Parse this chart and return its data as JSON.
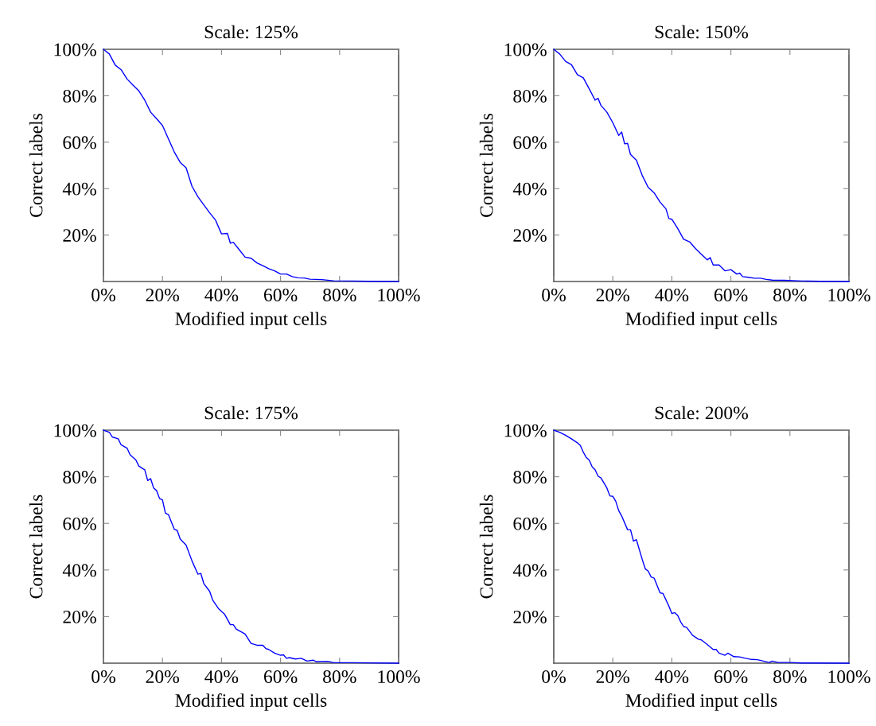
{
  "chart_data": [
    {
      "type": "line",
      "title": "Scale: 125%",
      "xlabel": "Modified input cells",
      "ylabel": "Correct labels",
      "xlim": [
        0,
        100
      ],
      "ylim": [
        0,
        100
      ],
      "xticks": [
        {
          "value": 0,
          "label": "0%"
        },
        {
          "value": 20,
          "label": "20%"
        },
        {
          "value": 40,
          "label": "40%"
        },
        {
          "value": 60,
          "label": "60%"
        },
        {
          "value": 80,
          "label": "80%"
        },
        {
          "value": 100,
          "label": "100%"
        }
      ],
      "yticks": [
        {
          "value": 20,
          "label": "20%"
        },
        {
          "value": 40,
          "label": "40%"
        },
        {
          "value": 60,
          "label": "60%"
        },
        {
          "value": 80,
          "label": "80%"
        },
        {
          "value": 100,
          "label": "100%"
        }
      ],
      "grid": false,
      "marker": "none",
      "line_style": "solid",
      "series": [
        {
          "color": "#0000ff",
          "x": [
            0,
            2,
            4,
            6,
            8,
            10,
            12,
            14,
            16,
            18,
            20,
            22,
            24,
            26,
            28,
            30,
            32,
            34,
            36,
            38,
            40,
            42,
            43,
            44,
            46,
            48,
            50,
            52,
            54,
            56,
            58,
            60,
            62,
            64,
            66,
            68,
            70,
            74,
            78,
            84,
            90,
            100
          ],
          "values": [
            100,
            98,
            93.2,
            91.2,
            87.2,
            84.6,
            82.1,
            78.1,
            72.9,
            70.1,
            67.2,
            61.5,
            55.8,
            51.3,
            49.0,
            41.0,
            36.5,
            33.0,
            29.6,
            26.4,
            20.5,
            20.7,
            16.5,
            16.9,
            13.7,
            10.5,
            10.0,
            8.0,
            6.8,
            5.5,
            4.6,
            3.2,
            3.2,
            2.1,
            1.6,
            1.5,
            1.0,
            0.8,
            0.3,
            0.2,
            0.1,
            0
          ]
        }
      ]
    },
    {
      "type": "line",
      "title": "Scale: 150%",
      "xlabel": "Modified input cells",
      "ylabel": "Correct labels",
      "xlim": [
        0,
        100
      ],
      "ylim": [
        0,
        100
      ],
      "xticks": [
        {
          "value": 0,
          "label": "0%"
        },
        {
          "value": 20,
          "label": "20%"
        },
        {
          "value": 40,
          "label": "40%"
        },
        {
          "value": 60,
          "label": "60%"
        },
        {
          "value": 80,
          "label": "80%"
        },
        {
          "value": 100,
          "label": "100%"
        }
      ],
      "yticks": [
        {
          "value": 20,
          "label": "20%"
        },
        {
          "value": 40,
          "label": "40%"
        },
        {
          "value": 60,
          "label": "60%"
        },
        {
          "value": 80,
          "label": "80%"
        },
        {
          "value": 100,
          "label": "100%"
        }
      ],
      "grid": false,
      "marker": "none",
      "line_style": "solid",
      "series": [
        {
          "color": "#0000ff",
          "x": [
            0,
            2,
            4,
            6,
            8,
            10,
            12,
            14,
            15,
            16,
            18,
            20,
            22,
            23,
            24,
            25,
            26,
            28,
            30,
            32,
            34,
            36,
            38,
            39,
            40,
            42,
            44,
            46,
            48,
            50,
            52,
            53,
            54,
            56,
            58,
            60,
            62,
            63,
            64,
            66,
            68,
            70,
            72,
            74,
            78,
            84,
            90,
            100
          ],
          "values": [
            100,
            98,
            94.8,
            93.4,
            89.1,
            87.7,
            83.0,
            78.1,
            78.9,
            75.8,
            72.9,
            68.4,
            62.9,
            64.4,
            59.3,
            59.5,
            54.7,
            52.2,
            45.6,
            40.5,
            38.2,
            34.2,
            31.3,
            27.1,
            26.8,
            22.8,
            18.2,
            17.1,
            14.2,
            11.7,
            9.3,
            10.3,
            7.1,
            7.1,
            4.6,
            5.1,
            3.2,
            3.6,
            2.1,
            1.8,
            1.4,
            1.4,
            0.9,
            0.6,
            0.5,
            0.2,
            0.1,
            0
          ]
        }
      ]
    },
    {
      "type": "line",
      "title": "Scale: 175%",
      "xlabel": "Modified input cells",
      "ylabel": "Correct labels",
      "xlim": [
        0,
        100
      ],
      "ylim": [
        0,
        100
      ],
      "xticks": [
        {
          "value": 0,
          "label": "0%"
        },
        {
          "value": 20,
          "label": "20%"
        },
        {
          "value": 40,
          "label": "40%"
        },
        {
          "value": 60,
          "label": "60%"
        },
        {
          "value": 80,
          "label": "80%"
        },
        {
          "value": 100,
          "label": "100%"
        }
      ],
      "yticks": [
        {
          "value": 20,
          "label": "20%"
        },
        {
          "value": 40,
          "label": "40%"
        },
        {
          "value": 60,
          "label": "60%"
        },
        {
          "value": 80,
          "label": "80%"
        },
        {
          "value": 100,
          "label": "100%"
        }
      ],
      "grid": false,
      "marker": "none",
      "line_style": "solid",
      "series": [
        {
          "color": "#0000ff",
          "x": [
            0,
            2,
            3,
            5,
            6,
            8,
            9,
            11,
            12,
            14,
            15,
            16,
            17,
            18,
            19,
            20,
            21,
            22,
            24,
            25,
            26,
            28,
            30,
            32,
            33,
            34,
            36,
            37,
            39,
            41,
            43,
            44,
            45,
            48,
            50,
            52,
            54,
            55,
            56,
            58,
            60,
            61,
            62,
            63,
            65,
            67,
            69,
            71,
            72,
            76,
            78,
            84,
            100
          ],
          "values": [
            100,
            99.1,
            97.1,
            96.3,
            93.7,
            92.3,
            89.5,
            87.2,
            84.6,
            83.0,
            78.4,
            79.2,
            75.2,
            74.1,
            70.7,
            70.1,
            64.4,
            63.8,
            57.5,
            57.0,
            53.3,
            50.7,
            43.9,
            38.2,
            38.5,
            34.2,
            30.8,
            27.1,
            23.4,
            21.1,
            16.5,
            16.5,
            14.6,
            12.5,
            8.5,
            7.7,
            7.7,
            6.3,
            5.9,
            4.3,
            3.4,
            3.6,
            2.1,
            2.4,
            1.8,
            2.1,
            0.9,
            1.3,
            0.7,
            0.8,
            0.2,
            0.2,
            0
          ]
        }
      ]
    },
    {
      "type": "line",
      "title": "Scale: 200%",
      "xlabel": "Modified input cells",
      "ylabel": "Correct labels",
      "xlim": [
        0,
        100
      ],
      "ylim": [
        0,
        100
      ],
      "xticks": [
        {
          "value": 0,
          "label": "0%"
        },
        {
          "value": 20,
          "label": "20%"
        },
        {
          "value": 40,
          "label": "40%"
        },
        {
          "value": 60,
          "label": "60%"
        },
        {
          "value": 80,
          "label": "80%"
        },
        {
          "value": 100,
          "label": "100%"
        }
      ],
      "yticks": [
        {
          "value": 20,
          "label": "20%"
        },
        {
          "value": 40,
          "label": "40%"
        },
        {
          "value": 60,
          "label": "60%"
        },
        {
          "value": 80,
          "label": "80%"
        },
        {
          "value": 100,
          "label": "100%"
        }
      ],
      "grid": false,
      "marker": "none",
      "line_style": "solid",
      "series": [
        {
          "color": "#0000ff",
          "x": [
            0,
            2,
            4,
            6,
            8,
            9,
            10,
            11,
            12,
            13,
            14,
            15,
            16,
            18,
            19,
            20,
            21,
            22,
            23,
            25,
            26,
            27,
            28,
            30,
            31,
            32,
            33,
            34,
            36,
            37,
            39,
            40,
            41,
            42,
            43,
            44,
            45,
            47,
            49,
            50,
            52,
            54,
            55,
            56,
            58,
            59,
            61,
            63,
            65,
            67,
            69,
            71,
            73,
            74,
            76,
            80,
            84,
            100
          ],
          "values": [
            100,
            99.1,
            97.8,
            96.3,
            94.6,
            93.4,
            90.6,
            88.3,
            87.2,
            84.3,
            83.0,
            80.3,
            79.5,
            75.2,
            71.8,
            71.6,
            69.5,
            65.5,
            63.2,
            57.3,
            57.3,
            52.4,
            53.0,
            44.4,
            40.5,
            39.5,
            37.0,
            36.5,
            30.2,
            29.9,
            24.5,
            21.3,
            21.7,
            20.5,
            17.7,
            15.7,
            15.4,
            12.0,
            10.3,
            10.0,
            8.0,
            5.9,
            5.9,
            4.3,
            3.4,
            4.3,
            2.8,
            2.7,
            2.1,
            1.6,
            1.5,
            0.9,
            0.3,
            0.9,
            0.3,
            0.3,
            0.1,
            0
          ]
        }
      ]
    }
  ]
}
